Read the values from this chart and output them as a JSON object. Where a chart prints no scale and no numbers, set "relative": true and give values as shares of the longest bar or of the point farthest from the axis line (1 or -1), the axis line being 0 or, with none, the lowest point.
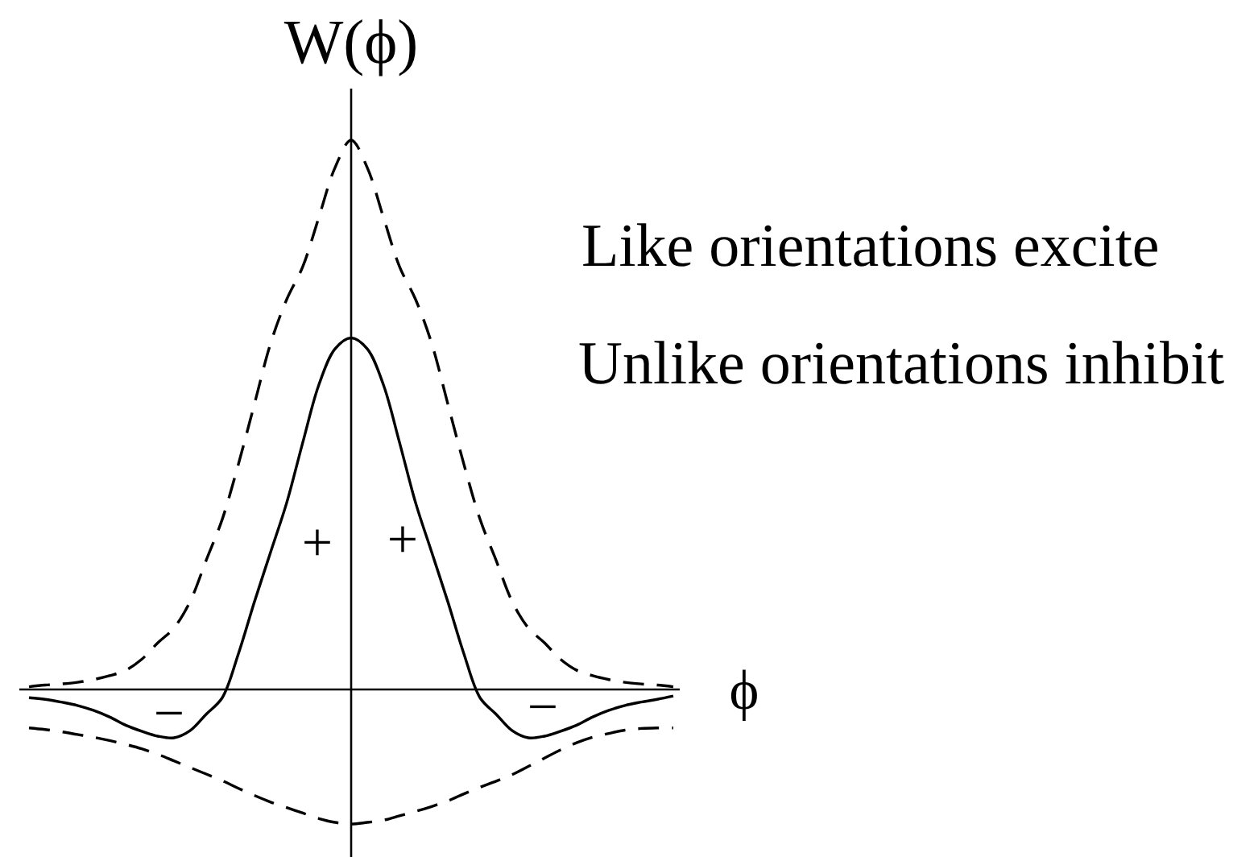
{
  "chart_data": {
    "type": "line",
    "relative": true,
    "ylabel": "W(ϕ)",
    "xlabel": "ϕ",
    "annotations": [
      "Like orientations excite",
      "Unlike orientations inhibit",
      "+",
      "+",
      "−",
      "−"
    ],
    "categories": [
      null,
      null,
      null,
      null,
      null,
      null,
      null,
      null,
      null,
      null,
      null,
      null,
      null,
      null,
      null,
      null,
      null,
      null,
      null,
      null,
      null,
      null,
      null,
      null,
      null,
      null,
      null,
      null,
      null,
      null,
      null,
      null,
      null,
      null,
      null,
      null,
      null,
      null,
      null,
      null,
      null
    ],
    "series": [
      {
        "color": "#000000",
        "line_style": "dashed",
        "values": [
          0.005,
          0.008,
          0.01,
          0.013,
          0.018,
          0.025,
          0.035,
          0.055,
          0.085,
          0.112,
          0.16,
          0.235,
          0.31,
          0.41,
          0.52,
          0.63,
          0.71,
          0.77,
          0.86,
          0.95,
          1.0,
          0.95,
          0.86,
          0.77,
          0.71,
          0.63,
          0.52,
          0.41,
          0.31,
          0.235,
          0.16,
          0.112,
          0.085,
          0.055,
          0.035,
          0.025,
          0.018,
          0.013,
          0.01,
          0.008,
          0.005
        ]
      },
      {
        "color": "#000000",
        "line_style": "solid",
        "values": [
          -0.015,
          -0.018,
          -0.023,
          -0.029,
          -0.038,
          -0.05,
          -0.065,
          -0.076,
          -0.085,
          -0.088,
          -0.075,
          -0.045,
          -0.015,
          0.065,
          0.16,
          0.25,
          0.34,
          0.45,
          0.555,
          0.62,
          0.64,
          0.62,
          0.555,
          0.45,
          0.34,
          0.25,
          0.16,
          0.065,
          -0.015,
          -0.045,
          -0.075,
          -0.088,
          -0.085,
          -0.076,
          -0.065,
          -0.05,
          -0.038,
          -0.029,
          -0.023,
          -0.018,
          -0.012
        ]
      },
      {
        "color": "#000000",
        "line_style": "dashed",
        "values": [
          -0.07,
          -0.073,
          -0.077,
          -0.082,
          -0.087,
          -0.093,
          -0.1,
          -0.108,
          -0.118,
          -0.13,
          -0.142,
          -0.154,
          -0.166,
          -0.18,
          -0.193,
          -0.205,
          -0.215,
          -0.225,
          -0.235,
          -0.242,
          -0.245,
          -0.242,
          -0.238,
          -0.23,
          -0.222,
          -0.213,
          -0.203,
          -0.19,
          -0.178,
          -0.167,
          -0.155,
          -0.14,
          -0.125,
          -0.11,
          -0.097,
          -0.087,
          -0.08,
          -0.074,
          -0.071,
          -0.07,
          -0.07
        ]
      }
    ]
  }
}
